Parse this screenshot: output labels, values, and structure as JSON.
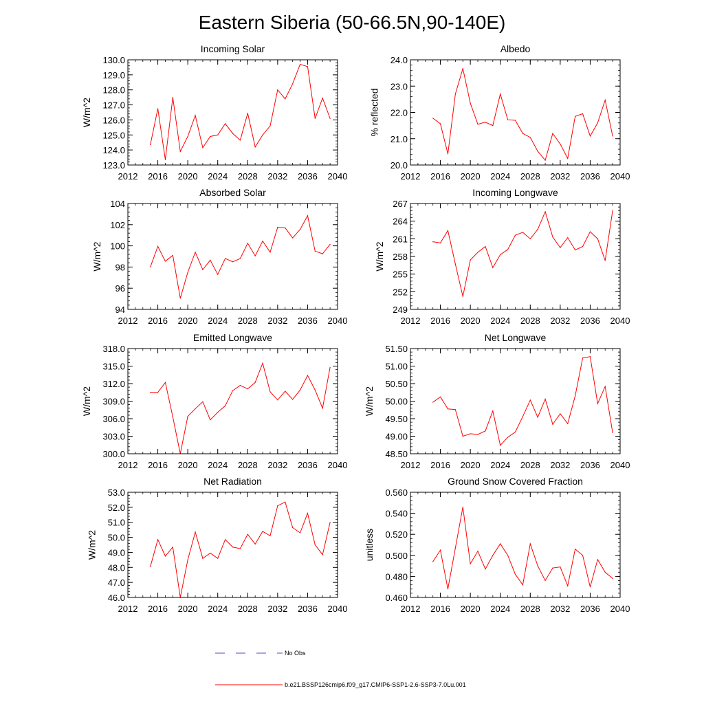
{
  "figure": {
    "title": "Eastern Siberia (50-66.5N,90-140E)",
    "line_color": "#ff0000",
    "obs_color": "#4a4ad0",
    "legend": [
      {
        "label": "No Obs",
        "style": "dashed",
        "color": "#4a4ad0"
      },
      {
        "label": "b.e21.BSSP126cmip6.f09_g17.CMIP6-SSP1-2.6-SSP3-7.0Lu.001",
        "style": "solid",
        "color": "#ff0000"
      }
    ]
  },
  "chart_data": [
    {
      "type": "line",
      "title": "Incoming Solar",
      "ylabel": "W/m^2",
      "xlim": [
        2012,
        2040
      ],
      "xticks": [
        "2012",
        "2016",
        "2020",
        "2024",
        "2028",
        "2032",
        "2036",
        "2040"
      ],
      "ylim": [
        123.0,
        130.0
      ],
      "yticks": [
        "123.0",
        "124.0",
        "125.0",
        "126.0",
        "127.0",
        "128.0",
        "129.0",
        "130.0"
      ],
      "x": [
        2015,
        2016,
        2017,
        2018,
        2019,
        2020,
        2021,
        2022,
        2023,
        2024,
        2025,
        2026,
        2027,
        2028,
        2029,
        2030,
        2031,
        2032,
        2033,
        2034,
        2035,
        2036,
        2037,
        2038,
        2039
      ],
      "series": [
        {
          "values": [
            124.35,
            126.75,
            123.35,
            127.5,
            123.9,
            124.9,
            126.3,
            124.15,
            124.9,
            125.0,
            125.75,
            125.1,
            124.65,
            126.45,
            124.2,
            125.0,
            125.6,
            128.0,
            127.4,
            128.4,
            129.7,
            129.55,
            126.1,
            127.45,
            126.1
          ]
        }
      ]
    },
    {
      "type": "line",
      "title": "Albedo",
      "ylabel": "% reflected",
      "xlim": [
        2012,
        2040
      ],
      "xticks": [
        "2012",
        "2016",
        "2020",
        "2024",
        "2028",
        "2032",
        "2036",
        "2040"
      ],
      "ylim": [
        20.0,
        24.0
      ],
      "yticks": [
        "20.0",
        "21.0",
        "22.0",
        "23.0",
        "24.0"
      ],
      "x": [
        2015,
        2016,
        2017,
        2018,
        2019,
        2020,
        2021,
        2022,
        2023,
        2024,
        2025,
        2026,
        2027,
        2028,
        2029,
        2030,
        2031,
        2032,
        2033,
        2034,
        2035,
        2036,
        2037,
        2038,
        2039
      ],
      "series": [
        {
          "values": [
            21.78,
            21.57,
            20.42,
            22.7,
            23.67,
            22.35,
            21.55,
            21.63,
            21.5,
            22.7,
            21.72,
            21.7,
            21.2,
            21.05,
            20.52,
            20.18,
            21.2,
            20.8,
            20.25,
            21.85,
            21.95,
            21.1,
            21.6,
            22.47,
            21.1
          ]
        }
      ]
    },
    {
      "type": "line",
      "title": "Absorbed Solar",
      "ylabel": "W/m^2",
      "xlim": [
        2012,
        2040
      ],
      "xticks": [
        "2012",
        "2016",
        "2020",
        "2024",
        "2028",
        "2032",
        "2036",
        "2040"
      ],
      "ylim": [
        94,
        104
      ],
      "yticks": [
        "94",
        "96",
        "98",
        "100",
        "102",
        "104"
      ],
      "x": [
        2015,
        2016,
        2017,
        2018,
        2019,
        2020,
        2021,
        2022,
        2023,
        2024,
        2025,
        2026,
        2027,
        2028,
        2029,
        2030,
        2031,
        2032,
        2033,
        2034,
        2035,
        2036,
        2037,
        2038,
        2039
      ],
      "series": [
        {
          "values": [
            98.0,
            99.95,
            98.55,
            99.1,
            95.05,
            97.5,
            99.4,
            97.75,
            98.65,
            97.3,
            98.8,
            98.5,
            98.8,
            100.25,
            99.05,
            100.45,
            99.4,
            101.75,
            101.7,
            100.75,
            101.55,
            102.85,
            99.5,
            99.25,
            100.15
          ]
        }
      ]
    },
    {
      "type": "line",
      "title": "Incoming Longwave",
      "ylabel": "W/m^2",
      "xlim": [
        2012,
        2040
      ],
      "xticks": [
        "2012",
        "2016",
        "2020",
        "2024",
        "2028",
        "2032",
        "2036",
        "2040"
      ],
      "ylim": [
        249,
        267
      ],
      "yticks": [
        "249",
        "252",
        "255",
        "258",
        "261",
        "264",
        "267"
      ],
      "x": [
        2015,
        2016,
        2017,
        2018,
        2019,
        2020,
        2021,
        2022,
        2023,
        2024,
        2025,
        2026,
        2027,
        2028,
        2029,
        2030,
        2031,
        2032,
        2033,
        2034,
        2035,
        2036,
        2037,
        2038,
        2039
      ],
      "series": [
        {
          "values": [
            260.5,
            260.3,
            262.4,
            256.7,
            251.2,
            257.4,
            258.7,
            259.7,
            256.1,
            258.3,
            259.2,
            261.6,
            262.1,
            261.0,
            262.6,
            265.6,
            261.3,
            259.5,
            261.2,
            259.1,
            259.7,
            262.2,
            261.0,
            257.3,
            265.8
          ]
        }
      ]
    },
    {
      "type": "line",
      "title": "Emitted Longwave",
      "ylabel": "W/m^2",
      "xlim": [
        2012,
        2040
      ],
      "xticks": [
        "2012",
        "2016",
        "2020",
        "2024",
        "2028",
        "2032",
        "2036",
        "2040"
      ],
      "ylim": [
        300.0,
        318.0
      ],
      "yticks": [
        "300.0",
        "303.0",
        "306.0",
        "309.0",
        "312.0",
        "315.0",
        "318.0"
      ],
      "x": [
        2015,
        2016,
        2017,
        2018,
        2019,
        2020,
        2021,
        2022,
        2023,
        2024,
        2025,
        2026,
        2027,
        2028,
        2029,
        2030,
        2031,
        2032,
        2033,
        2034,
        2035,
        2036,
        2037,
        2038,
        2039
      ],
      "series": [
        {
          "values": [
            310.5,
            310.5,
            312.2,
            306.3,
            300.0,
            306.4,
            307.7,
            308.9,
            305.8,
            307.1,
            308.2,
            310.8,
            311.7,
            311.1,
            312.2,
            315.5,
            310.6,
            309.2,
            310.7,
            309.3,
            310.9,
            313.4,
            310.9,
            307.8,
            314.8
          ]
        }
      ]
    },
    {
      "type": "line",
      "title": "Net Longwave",
      "ylabel": "W/m^2",
      "xlim": [
        2012,
        2040
      ],
      "xticks": [
        "2012",
        "2016",
        "2020",
        "2024",
        "2028",
        "2032",
        "2036",
        "2040"
      ],
      "ylim": [
        48.5,
        51.5
      ],
      "yticks": [
        "48.50",
        "49.00",
        "49.50",
        "50.00",
        "50.50",
        "51.00",
        "51.50"
      ],
      "x": [
        2015,
        2016,
        2017,
        2018,
        2019,
        2020,
        2021,
        2022,
        2023,
        2024,
        2025,
        2026,
        2027,
        2028,
        2029,
        2030,
        2031,
        2032,
        2033,
        2034,
        2035,
        2036,
        2037,
        2038,
        2039
      ],
      "series": [
        {
          "values": [
            49.97,
            50.12,
            49.78,
            49.76,
            49.0,
            49.07,
            49.05,
            49.15,
            49.72,
            48.74,
            48.97,
            49.12,
            49.56,
            50.03,
            49.54,
            50.06,
            49.34,
            49.64,
            49.36,
            50.15,
            51.23,
            51.27,
            49.93,
            50.42,
            49.1
          ]
        }
      ]
    },
    {
      "type": "line",
      "title": "Net Radiation",
      "ylabel": "W/m^2",
      "xlim": [
        2012,
        2040
      ],
      "xticks": [
        "2012",
        "2016",
        "2020",
        "2024",
        "2028",
        "2032",
        "2036",
        "2040"
      ],
      "ylim": [
        46.0,
        53.0
      ],
      "yticks": [
        "46.0",
        "47.0",
        "48.0",
        "49.0",
        "50.0",
        "51.0",
        "52.0",
        "53.0"
      ],
      "x": [
        2015,
        2016,
        2017,
        2018,
        2019,
        2020,
        2021,
        2022,
        2023,
        2024,
        2025,
        2026,
        2027,
        2028,
        2029,
        2030,
        2031,
        2032,
        2033,
        2034,
        2035,
        2036,
        2037,
        2038,
        2039
      ],
      "series": [
        {
          "values": [
            48.05,
            49.85,
            48.75,
            49.35,
            46.0,
            48.5,
            50.35,
            48.6,
            48.95,
            48.6,
            49.85,
            49.35,
            49.25,
            50.2,
            49.55,
            50.4,
            50.1,
            52.1,
            52.35,
            50.65,
            50.3,
            51.6,
            49.5,
            48.85,
            51.0
          ]
        }
      ]
    },
    {
      "type": "line",
      "title": "Ground Snow Covered Fraction",
      "ylabel": "unitless",
      "xlim": [
        2012,
        2040
      ],
      "xticks": [
        "2012",
        "2016",
        "2020",
        "2024",
        "2028",
        "2032",
        "2036",
        "2040"
      ],
      "ylim": [
        0.46,
        0.56
      ],
      "yticks": [
        "0.460",
        "0.480",
        "0.500",
        "0.520",
        "0.540",
        "0.560"
      ],
      "x": [
        2015,
        2016,
        2017,
        2018,
        2019,
        2020,
        2021,
        2022,
        2023,
        2024,
        2025,
        2026,
        2027,
        2028,
        2029,
        2030,
        2031,
        2032,
        2033,
        2034,
        2035,
        2036,
        2037,
        2038,
        2039
      ],
      "series": [
        {
          "values": [
            0.494,
            0.505,
            0.468,
            0.507,
            0.546,
            0.492,
            0.504,
            0.487,
            0.5,
            0.511,
            0.5,
            0.482,
            0.472,
            0.511,
            0.49,
            0.476,
            0.488,
            0.489,
            0.471,
            0.506,
            0.5,
            0.47,
            0.496,
            0.484,
            0.478
          ]
        }
      ]
    }
  ]
}
